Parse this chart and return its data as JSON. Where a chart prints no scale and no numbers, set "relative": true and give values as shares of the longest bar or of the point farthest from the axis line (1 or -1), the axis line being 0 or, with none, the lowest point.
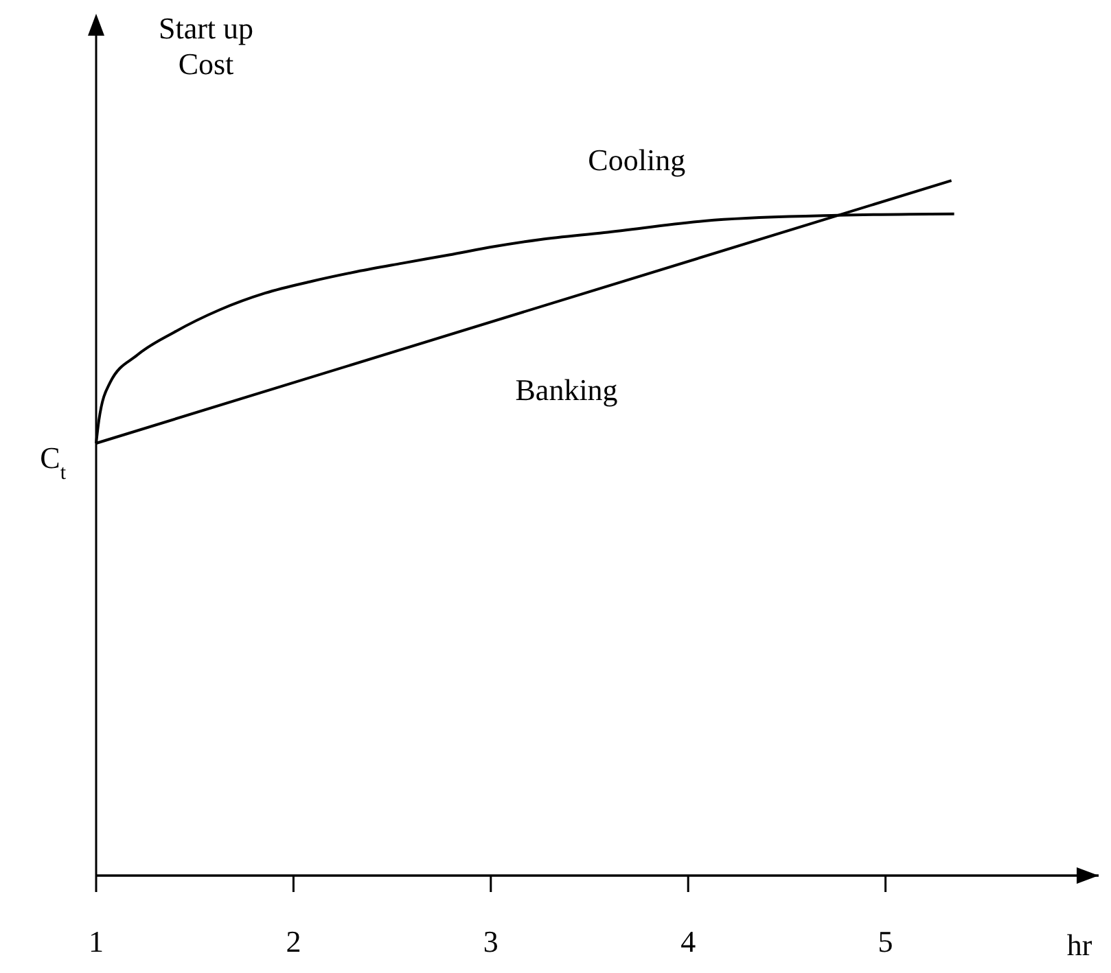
{
  "chart_data": {
    "type": "line",
    "relative": true,
    "ylabel": "Start up\nCost",
    "xlabel": "hr",
    "x": [
      1,
      1.014,
      1.07,
      1.209,
      1.397,
      1.626,
      1.856,
      2.092,
      2.322,
      2.551,
      2.788,
      3.017,
      3.247,
      3.574,
      4.13,
      4.757,
      5.348
    ],
    "xlim": [
      1,
      6.08
    ],
    "xticks": [
      1,
      2,
      3,
      4,
      5
    ],
    "series": [
      {
        "name": "Cooling",
        "color": "#000000",
        "values": [
          0.622,
          0.655,
          0.709,
          0.749,
          0.782,
          0.814,
          0.838,
          0.855,
          0.869,
          0.881,
          0.893,
          0.905,
          0.915,
          0.925,
          0.943,
          0.95,
          0.952
        ]
      },
      {
        "name": "Banking",
        "color": "#000000",
        "x": [
          1,
          5.334
        ],
        "values": [
          0.622,
          1.0
        ]
      }
    ],
    "annotations": [
      {
        "text": "C$_{t}$",
        "x": 1,
        "y": 0.622
      }
    ],
    "grid": false,
    "legend": false,
    "marker": "none",
    "line_style": "solid"
  }
}
